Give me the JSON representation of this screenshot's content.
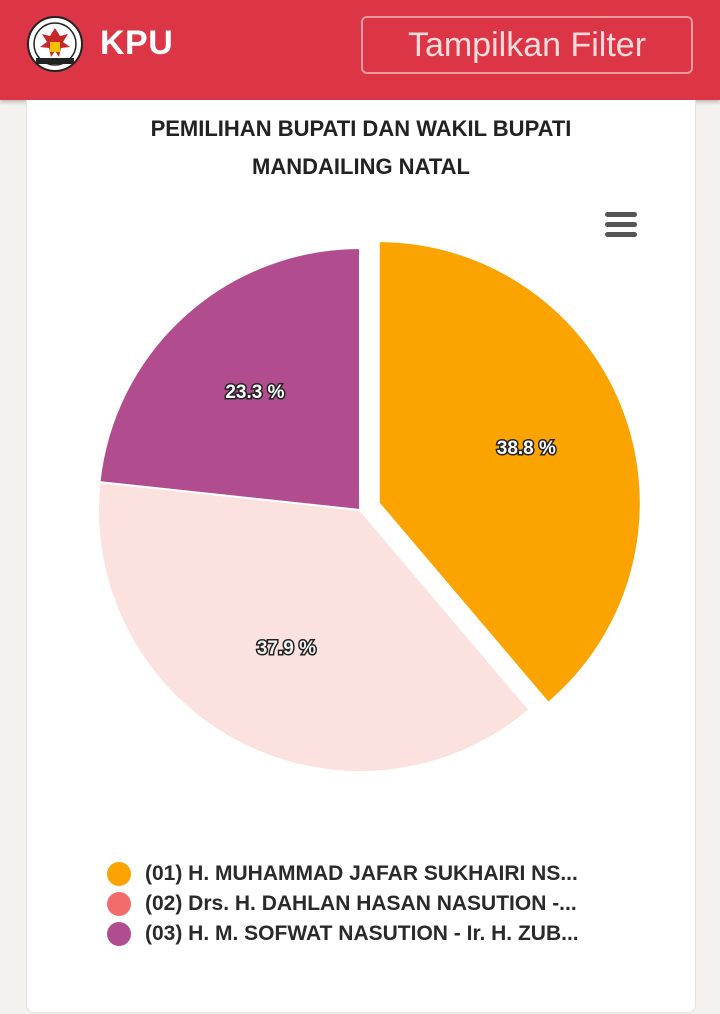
{
  "header": {
    "brand": "KPU",
    "filter_button": "Tampilkan Filter"
  },
  "chart_data": {
    "type": "pie",
    "title": [
      "PEMILIHAN BUPATI DAN WAKIL BUPATI",
      "MANDAILING NATAL"
    ],
    "series": [
      {
        "name": "(01) H. MUHAMMAD JAFAR SUKHAIRI NS...",
        "value": 38.8,
        "label": "38.8 %",
        "color": "#fba300",
        "label_color": "#ffffff",
        "exploded": true
      },
      {
        "name": "(02) Drs. H. DAHLAN HASAN NASUTION -...",
        "value": 37.9,
        "label": "37.9 %",
        "color": "#fbe2de",
        "label_color": "#f4f4f4",
        "legend_color": "#f46b6b",
        "exploded": false
      },
      {
        "name": "(03) H. M. SOFWAT NASUTION - Ir. H. ZUB...",
        "value": 23.3,
        "label": "23.3 %",
        "color": "#b14c8e",
        "label_color": "#ffffff",
        "exploded": false
      }
    ],
    "legend_position": "bottom"
  }
}
